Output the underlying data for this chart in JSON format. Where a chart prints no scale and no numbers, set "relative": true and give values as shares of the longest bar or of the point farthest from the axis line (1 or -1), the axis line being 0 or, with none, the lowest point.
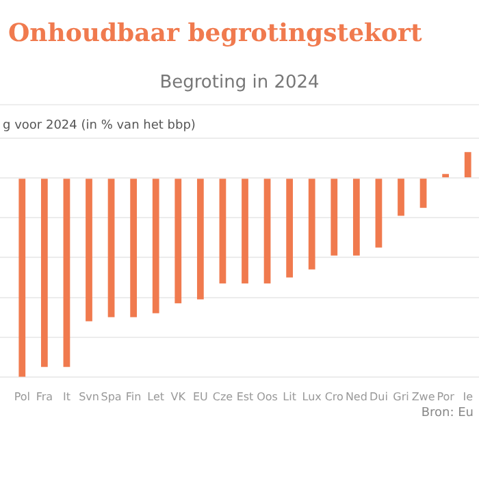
{
  "chart_data": {
    "type": "bar",
    "title": "Onhoudbaar begrotingstekort",
    "subtitle": "Begroting in 2024",
    "ylabel": "g voor 2024 (in % van het bbp)",
    "categories": [
      "Pol",
      "Fra",
      "It",
      "Svn",
      "Spa",
      "Fin",
      "Let",
      "VK",
      "EU",
      "Cze",
      "Est",
      "Oos",
      "Lit",
      "Lux",
      "Cro",
      "Ned",
      "Dui",
      "Gri",
      "Zwe",
      "Por",
      "Ie"
    ],
    "values": [
      -1,
      -0.95,
      -0.95,
      -0.72,
      -0.7,
      -0.7,
      -0.68,
      -0.63,
      -0.61,
      -0.53,
      -0.53,
      -0.53,
      -0.5,
      -0.46,
      -0.39,
      -0.39,
      -0.35,
      -0.19,
      -0.15,
      0.02,
      0.13
    ],
    "color": "#f07a4e",
    "relative": true,
    "grid": "y",
    "legend": false,
    "annotations": [
      "Bron: Eu"
    ]
  }
}
